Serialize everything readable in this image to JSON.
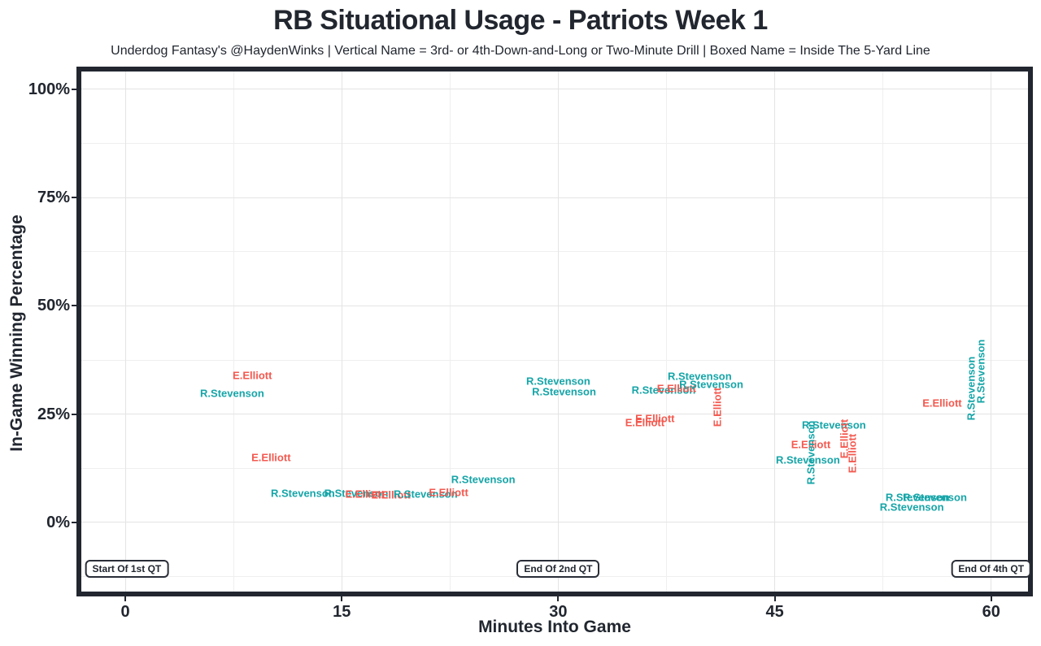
{
  "title": "RB Situational Usage - Patriots Week 1",
  "subtitle": "Underdog Fantasy's @HaydenWinks | Vertical Name = 3rd- or 4th-Down-and-Long or Two-Minute Drill | Boxed Name = Inside The 5-Yard Line",
  "chart_data": {
    "type": "scatter",
    "title": "RB Situational Usage - Patriots Week 1",
    "xlabel": "Minutes Into Game",
    "ylabel": "In-Game Winning Percentage",
    "xlim": [
      -3.05,
      62.55
    ],
    "ylim": [
      -15.95,
      104.1
    ],
    "grid": "on",
    "x_ticks": [
      {
        "value": 0,
        "label": "0"
      },
      {
        "value": 15,
        "label": "15"
      },
      {
        "value": 30,
        "label": "30"
      },
      {
        "value": 45,
        "label": "45"
      },
      {
        "value": 60,
        "label": "60"
      }
    ],
    "y_ticks": [
      {
        "value": 0,
        "label": "0%"
      },
      {
        "value": 25,
        "label": "25%"
      },
      {
        "value": 50,
        "label": "50%"
      },
      {
        "value": 75,
        "label": "75%"
      },
      {
        "value": 100,
        "label": "100%"
      }
    ],
    "x_minor_breaks": [
      7.5,
      22.5,
      37.5,
      52.5
    ],
    "y_minor_breaks": [
      -12.5,
      12.5,
      37.5,
      62.5,
      87.5
    ],
    "series_colors": {
      "R.Stevenson": "#16a5a8",
      "E.Elliott": "#f3594f"
    },
    "legend": "none",
    "points": [
      {
        "name": "E.Elliott",
        "minutes": 8.8,
        "win_pct": 34.0,
        "rotated": false,
        "boxed": false
      },
      {
        "name": "R.Stevenson",
        "minutes": 7.4,
        "win_pct": 29.8,
        "rotated": false,
        "boxed": false
      },
      {
        "name": "E.Elliott",
        "minutes": 10.1,
        "win_pct": 15.0,
        "rotated": false,
        "boxed": false
      },
      {
        "name": "R.Stevenson",
        "minutes": 12.3,
        "win_pct": 6.8,
        "rotated": false,
        "boxed": false
      },
      {
        "name": "R.Stevenson",
        "minutes": 16.0,
        "win_pct": 6.8,
        "rotated": false,
        "boxed": false
      },
      {
        "name": "E.Elliott",
        "minutes": 16.6,
        "win_pct": 6.6,
        "rotated": false,
        "boxed": false
      },
      {
        "name": "E.Elliott",
        "minutes": 18.4,
        "win_pct": 6.4,
        "rotated": false,
        "boxed": false
      },
      {
        "name": "R.Stevenson",
        "minutes": 20.8,
        "win_pct": 6.6,
        "rotated": false,
        "boxed": false
      },
      {
        "name": "E.Elliott",
        "minutes": 22.4,
        "win_pct": 6.9,
        "rotated": false,
        "boxed": false
      },
      {
        "name": "R.Stevenson",
        "minutes": 24.8,
        "win_pct": 9.9,
        "rotated": false,
        "boxed": false
      },
      {
        "name": "R.Stevenson",
        "minutes": 30.0,
        "win_pct": 32.6,
        "rotated": false,
        "boxed": false
      },
      {
        "name": "R.Stevenson",
        "minutes": 30.4,
        "win_pct": 30.2,
        "rotated": false,
        "boxed": false
      },
      {
        "name": "R.Stevenson",
        "minutes": 37.3,
        "win_pct": 30.6,
        "rotated": false,
        "boxed": false
      },
      {
        "name": "E.Elliott",
        "minutes": 38.2,
        "win_pct": 31.0,
        "rotated": false,
        "boxed": false
      },
      {
        "name": "R.Stevenson",
        "minutes": 39.8,
        "win_pct": 33.8,
        "rotated": false,
        "boxed": false
      },
      {
        "name": "R.Stevenson",
        "minutes": 40.6,
        "win_pct": 31.9,
        "rotated": false,
        "boxed": false
      },
      {
        "name": "E.Elliott",
        "minutes": 41.0,
        "win_pct": 26.6,
        "rotated": true,
        "boxed": false
      },
      {
        "name": "E.Elliott",
        "minutes": 36.7,
        "win_pct": 24.0,
        "rotated": false,
        "boxed": false
      },
      {
        "name": "E.Elliott",
        "minutes": 36.0,
        "win_pct": 23.1,
        "rotated": false,
        "boxed": false
      },
      {
        "name": "R.Stevenson",
        "minutes": 49.1,
        "win_pct": 22.5,
        "rotated": false,
        "boxed": false
      },
      {
        "name": "E.Elliott",
        "minutes": 47.5,
        "win_pct": 18.0,
        "rotated": false,
        "boxed": false
      },
      {
        "name": "R.Stevenson",
        "minutes": 47.5,
        "win_pct": 16.1,
        "rotated": true,
        "boxed": false
      },
      {
        "name": "E.Elliott",
        "minutes": 49.8,
        "win_pct": 19.3,
        "rotated": true,
        "boxed": false
      },
      {
        "name": "E.Elliott",
        "minutes": 50.4,
        "win_pct": 15.9,
        "rotated": true,
        "boxed": false
      },
      {
        "name": "R.Stevenson",
        "minutes": 47.3,
        "win_pct": 14.4,
        "rotated": false,
        "boxed": false
      },
      {
        "name": "R.Stevenson",
        "minutes": 54.9,
        "win_pct": 5.8,
        "rotated": false,
        "boxed": false
      },
      {
        "name": "R.Stevenson",
        "minutes": 56.1,
        "win_pct": 5.8,
        "rotated": false,
        "boxed": false
      },
      {
        "name": "R.Stevenson",
        "minutes": 54.5,
        "win_pct": 3.6,
        "rotated": false,
        "boxed": false
      },
      {
        "name": "R.Stevenson",
        "minutes": 58.6,
        "win_pct": 31.0,
        "rotated": true,
        "boxed": false
      },
      {
        "name": "R.Stevenson",
        "minutes": 59.3,
        "win_pct": 34.9,
        "rotated": true,
        "boxed": false
      },
      {
        "name": "E.Elliott",
        "minutes": 56.6,
        "win_pct": 27.6,
        "rotated": false,
        "boxed": false
      }
    ],
    "annotations": [
      {
        "label": "Start Of 1st QT",
        "minutes": 0.1,
        "win_pct": -10.7
      },
      {
        "label": "End Of 2nd QT",
        "minutes": 30.0,
        "win_pct": -10.7
      },
      {
        "label": "End Of 4th QT",
        "minutes": 60.0,
        "win_pct": -10.7
      }
    ]
  }
}
